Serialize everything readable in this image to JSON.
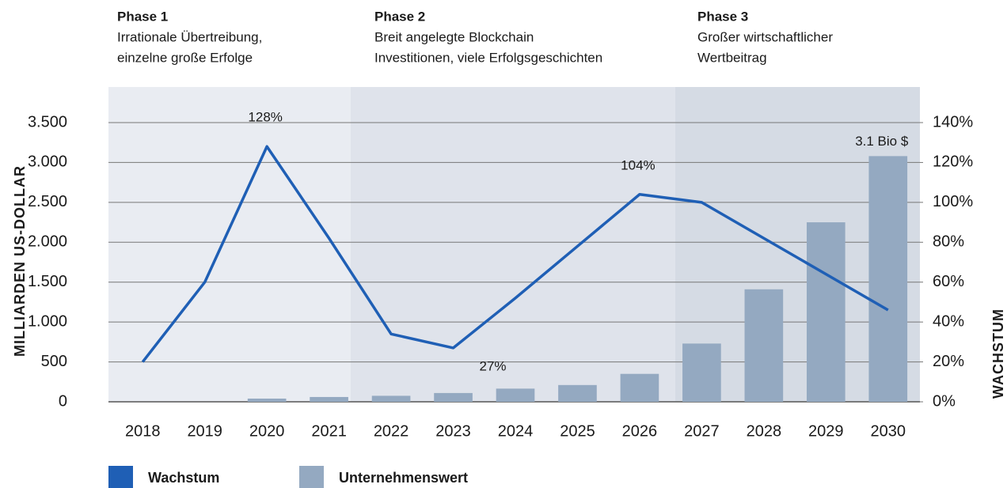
{
  "chart_data": {
    "type": "combo",
    "phases": [
      {
        "title": "Phase 1",
        "lines": [
          "Irrationale Übertreibung,",
          "einzelne große Erfolge"
        ]
      },
      {
        "title": "Phase 2",
        "lines": [
          "Breit angelegte Blockchain",
          "Investitionen, viele Erfolgsgeschichten"
        ]
      },
      {
        "title": "Phase 3",
        "lines": [
          "Großer wirtschaftlicher",
          "Wertbeitrag"
        ]
      }
    ],
    "categories": [
      "2018",
      "2019",
      "2020",
      "2021",
      "2022",
      "2023",
      "2024",
      "2025",
      "2026",
      "2027",
      "2028",
      "2029",
      "2030"
    ],
    "series": [
      {
        "name": "Wachstum",
        "type": "line",
        "axis": "y2",
        "color": "#1f5fb5",
        "values": [
          20,
          60,
          128,
          82,
          34,
          27,
          52,
          78,
          104,
          100,
          82,
          64,
          46
        ],
        "value_labels": [
          null,
          null,
          "128%",
          null,
          null,
          "27%",
          null,
          null,
          "104%",
          null,
          null,
          null,
          null
        ]
      },
      {
        "name": "Unternehmenswert",
        "type": "bar",
        "axis": "y",
        "color": "#94a9c1",
        "values": [
          0,
          0,
          40,
          60,
          75,
          110,
          165,
          210,
          350,
          730,
          1410,
          2250,
          3080
        ],
        "value_labels": [
          null,
          null,
          null,
          null,
          null,
          null,
          null,
          null,
          null,
          null,
          null,
          null,
          "3.1 Bio $"
        ]
      }
    ],
    "ylabel": "MILLIARDEN US-DOLLAR",
    "y2label": "WACHSTUM",
    "ylim": [
      0,
      3500
    ],
    "yticks": [
      0,
      500,
      {
        "value": 1000,
        "label": "1.000"
      },
      {
        "value": 1500,
        "label": "1.500"
      },
      {
        "value": 2000,
        "label": "2.000"
      },
      {
        "value": 2500,
        "label": "2.500"
      },
      {
        "value": 3000,
        "label": "3.000"
      },
      {
        "value": 3500,
        "label": "3.500"
      }
    ],
    "y2lim": [
      0,
      140
    ],
    "y2ticks": [
      {
        "value": 0,
        "label": "0%"
      },
      {
        "value": 20,
        "label": "20%"
      },
      {
        "value": 40,
        "label": "40%"
      },
      {
        "value": 60,
        "label": "60%"
      },
      {
        "value": 80,
        "label": "80%"
      },
      {
        "value": 100,
        "label": "100%"
      },
      {
        "value": 120,
        "label": "120%"
      },
      {
        "value": 140,
        "label": "140%"
      }
    ],
    "grid": true
  }
}
